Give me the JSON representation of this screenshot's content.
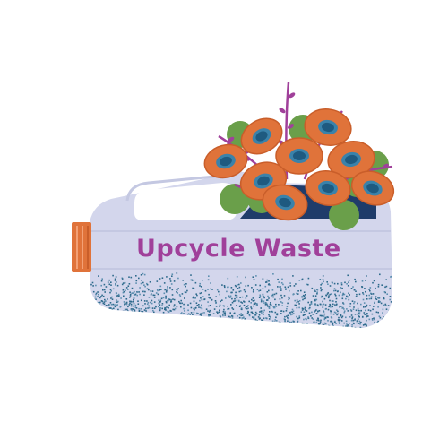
{
  "logo": {
    "text": "Upcycle Waste",
    "text_color": "#a0409a"
  },
  "colors": {
    "bottle": "#d3d6ec",
    "bottle_shade": "#c4c8e2",
    "cap": "#e0733a",
    "speckle": "#2e6a8c",
    "petal": "#e0733a",
    "flower_center": "#1e5a80",
    "leaf": "#6a9f4a",
    "twig": "#a0409a"
  },
  "icons": [
    "bottle-icon",
    "cap-icon",
    "flower-icon",
    "leaf-icon",
    "twig-icon"
  ]
}
